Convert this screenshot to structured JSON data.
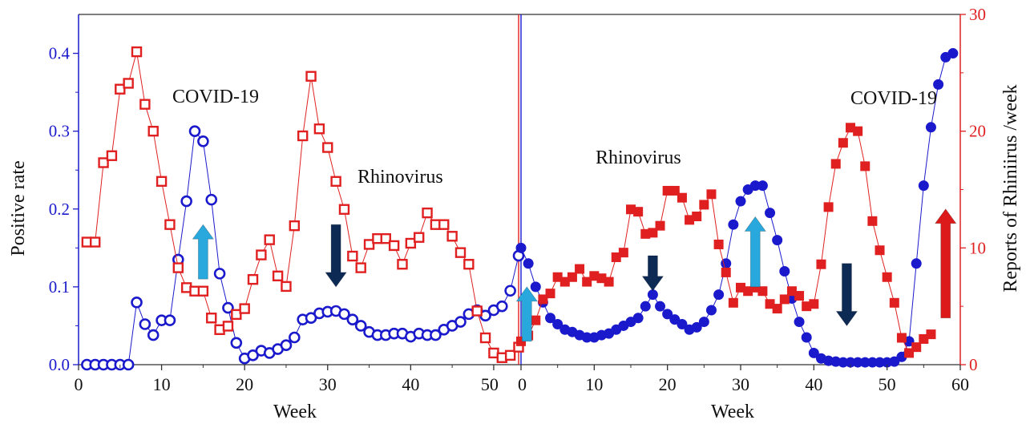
{
  "chart_data": {
    "type": "scatter",
    "left_axis": {
      "label": "Positive rate",
      "ylim": [
        0,
        0.45
      ],
      "ticks": [
        0.0,
        0.1,
        0.2,
        0.3,
        0.4
      ],
      "tick_labels": [
        "0.0",
        "0.1",
        "0.2",
        "0.3",
        "0.4"
      ],
      "color": "#1a1acc"
    },
    "right_axis": {
      "label": "Reports of Rhiniirus /week",
      "ylim": [
        0,
        30
      ],
      "ticks": [
        0,
        10,
        20,
        30
      ],
      "tick_labels": [
        "0",
        "10",
        "20",
        "30"
      ],
      "color": "#e02020"
    },
    "panels": [
      {
        "xlabel": "Week",
        "xlim": [
          0,
          53
        ],
        "xticks": [
          0,
          10,
          20,
          30,
          40,
          50
        ],
        "xtick_labels": [
          "0",
          "10",
          "20",
          "30",
          "40",
          "50"
        ],
        "annotations": [
          "COVID-19",
          "Rhinovirus"
        ],
        "arrows": [
          {
            "x": 15,
            "y_from": 0.11,
            "y_to": 0.18,
            "direction": "up",
            "color": "#29a8dd"
          },
          {
            "x": 31,
            "y_from": 0.18,
            "y_to": 0.1,
            "direction": "down",
            "color": "#0d2a55"
          }
        ],
        "series": [
          {
            "axis": "left",
            "marker": "open-circle",
            "color": "#1a1acc",
            "x": [
              1,
              2,
              3,
              4,
              5,
              6,
              7,
              8,
              9,
              10,
              11,
              12,
              13,
              14,
              15,
              16,
              17,
              18,
              19,
              20,
              21,
              22,
              23,
              24,
              25,
              26,
              27,
              28,
              29,
              30,
              31,
              32,
              33,
              34,
              35,
              36,
              37,
              38,
              39,
              40,
              41,
              42,
              43,
              44,
              45,
              46,
              47,
              48,
              49,
              50,
              51,
              52,
              53
            ],
            "y": [
              0,
              0,
              0,
              0,
              0,
              0,
              0.08,
              0.052,
              0.038,
              0.057,
              0.057,
              0.135,
              0.21,
              0.3,
              0.287,
              0.212,
              0.117,
              0.073,
              0.028,
              0.008,
              0.012,
              0.018,
              0.015,
              0.02,
              0.025,
              0.035,
              0.058,
              0.06,
              0.066,
              0.068,
              0.069,
              0.065,
              0.058,
              0.05,
              0.042,
              0.038,
              0.038,
              0.04,
              0.04,
              0.036,
              0.04,
              0.038,
              0.038,
              0.045,
              0.05,
              0.055,
              0.065,
              0.07,
              0.063,
              0.07,
              0.075,
              0.095,
              0.14
            ]
          },
          {
            "axis": "right",
            "marker": "open-square",
            "color": "#e02020",
            "x": [
              1,
              2,
              3,
              4,
              5,
              6,
              7,
              8,
              9,
              10,
              11,
              12,
              13,
              14,
              15,
              16,
              17,
              18,
              19,
              20,
              21,
              22,
              23,
              24,
              25,
              26,
              27,
              28,
              29,
              30,
              31,
              32,
              33,
              34,
              35,
              36,
              37,
              38,
              39,
              40,
              41,
              42,
              43,
              44,
              45,
              46,
              47,
              48,
              49,
              50,
              51,
              52,
              53
            ],
            "y": [
              10.5,
              10.5,
              17.3,
              17.9,
              23.6,
              24.1,
              26.8,
              22.3,
              20.0,
              15.7,
              12.0,
              8.3,
              6.6,
              6.3,
              6.3,
              4.0,
              3.0,
              3.3,
              4.3,
              4.8,
              7.3,
              9.4,
              10.7,
              7.6,
              6.7,
              11.9,
              19.6,
              24.7,
              20.2,
              18.6,
              15.7,
              13.3,
              9.3,
              8.3,
              10.3,
              10.8,
              10.8,
              10.2,
              8.6,
              10.4,
              10.9,
              13.0,
              12.0,
              12.0,
              11.0,
              9.6,
              8.6,
              4.6,
              2.3,
              1.0,
              0.6,
              0.8,
              1.5
            ]
          }
        ]
      },
      {
        "xlabel": "Week",
        "xlim": [
          0,
          60
        ],
        "xticks": [
          0,
          10,
          20,
          30,
          40,
          50,
          60
        ],
        "xtick_labels": [
          "0",
          "10",
          "20",
          "30",
          "40",
          "50",
          "60"
        ],
        "annotations": [
          "Rhinovirus",
          "COVID-19"
        ],
        "arrows": [
          {
            "x": 0.8,
            "y_from": 0.03,
            "y_to": 0.1,
            "direction": "up",
            "color": "#29a8dd"
          },
          {
            "x": 18,
            "y_from": 0.14,
            "y_to": 0.095,
            "direction": "down",
            "color": "#0d2a55"
          },
          {
            "x": 32,
            "y_from": 0.1,
            "y_to": 0.19,
            "direction": "up",
            "color": "#29a8dd"
          },
          {
            "x": 44.5,
            "y_from": 0.13,
            "y_to": 0.05,
            "direction": "down",
            "color": "#0d2a55"
          },
          {
            "x": 58,
            "y_from": 0.06,
            "y_to": 0.2,
            "direction": "up",
            "color": "#dd1a1a"
          }
        ],
        "series": [
          {
            "axis": "left",
            "marker": "filled-circle",
            "color": "#1a1acc",
            "x": [
              0,
              1,
              2,
              3,
              4,
              5,
              6,
              7,
              8,
              9,
              10,
              11,
              12,
              13,
              14,
              15,
              16,
              17,
              18,
              19,
              20,
              21,
              22,
              23,
              24,
              25,
              26,
              27,
              28,
              29,
              30,
              31,
              32,
              33,
              34,
              35,
              36,
              37,
              38,
              39,
              40,
              41,
              42,
              43,
              44,
              45,
              46,
              47,
              48,
              49,
              50,
              51,
              52,
              53,
              54,
              55,
              56,
              57,
              58,
              59
            ],
            "y": [
              0.15,
              0.13,
              0.1,
              0.08,
              0.06,
              0.052,
              0.045,
              0.042,
              0.038,
              0.035,
              0.035,
              0.038,
              0.04,
              0.045,
              0.05,
              0.055,
              0.06,
              0.075,
              0.09,
              0.075,
              0.065,
              0.058,
              0.052,
              0.045,
              0.048,
              0.055,
              0.07,
              0.09,
              0.13,
              0.18,
              0.21,
              0.225,
              0.23,
              0.23,
              0.195,
              0.16,
              0.12,
              0.085,
              0.055,
              0.035,
              0.015,
              0.008,
              0.005,
              0.004,
              0.003,
              0.003,
              0.003,
              0.003,
              0.003,
              0.003,
              0.003,
              0.004,
              0.01,
              0.03,
              0.13,
              0.23,
              0.305,
              0.36,
              0.395,
              0.4
            ]
          },
          {
            "axis": "right",
            "marker": "filled-square",
            "color": "#e02020",
            "x": [
              0,
              1,
              2,
              3,
              4,
              5,
              6,
              7,
              8,
              9,
              10,
              11,
              12,
              13,
              14,
              15,
              16,
              17,
              18,
              19,
              20,
              21,
              22,
              23,
              24,
              25,
              26,
              27,
              28,
              29,
              30,
              31,
              32,
              33,
              34,
              35,
              36,
              37,
              38,
              39,
              40,
              41,
              42,
              43,
              44,
              45,
              46,
              47,
              48,
              49,
              50,
              51,
              52,
              53,
              54,
              55,
              56
            ],
            "y": [
              2,
              2.5,
              3.8,
              5.6,
              6.1,
              7.5,
              7.1,
              7.5,
              8.2,
              7.1,
              7.6,
              7.4,
              7.1,
              9.2,
              9.6,
              13.3,
              13.1,
              11.2,
              11.3,
              11.9,
              14.9,
              14.9,
              14.3,
              12.4,
              12.7,
              13.7,
              14.6,
              10.3,
              7.9,
              5.3,
              6.6,
              6.3,
              6.6,
              6.3,
              5.2,
              4.8,
              5.6,
              6.3,
              5.9,
              5.0,
              5.2,
              8.6,
              13.5,
              17.2,
              19.0,
              20.3,
              20.0,
              17.0,
              12.3,
              9.8,
              7.5,
              5.3,
              2.3,
              1.0,
              1.5,
              2.2,
              2.6
            ]
          }
        ]
      }
    ]
  }
}
